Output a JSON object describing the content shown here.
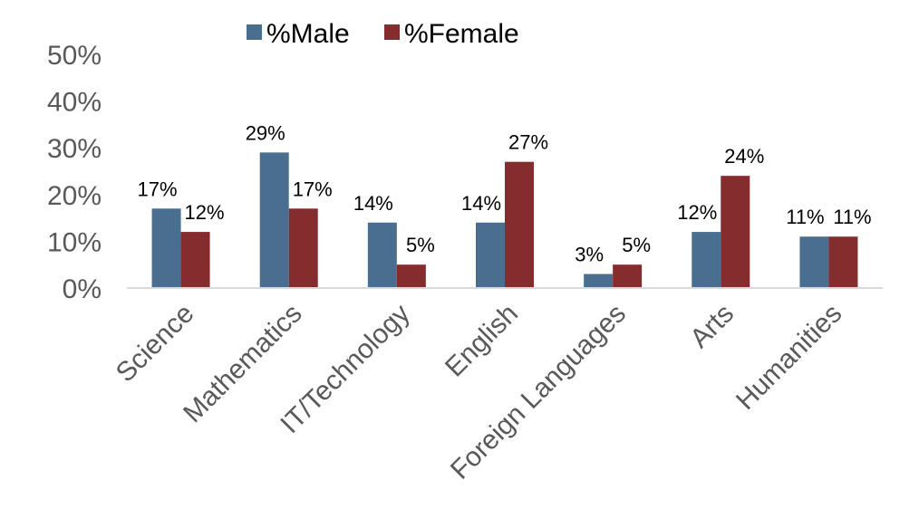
{
  "chart_data": {
    "type": "bar",
    "categories": [
      "Science",
      "Mathematics",
      "IT/Technology",
      "English",
      "Foreign Languages",
      "Arts",
      "Humanities"
    ],
    "series": [
      {
        "name": "%Male",
        "values": [
          17,
          29,
          14,
          14,
          3,
          12,
          11
        ],
        "labels": [
          "17%",
          "29%",
          "14%",
          "14%",
          "3%",
          "12%",
          "11%"
        ],
        "color": "#4A6E8F"
      },
      {
        "name": "%Female",
        "values": [
          12,
          17,
          5,
          27,
          5,
          24,
          11
        ],
        "labels": [
          "12%",
          "17%",
          "5%",
          "27%",
          "5%",
          "24%",
          "11%"
        ],
        "color": "#852C2F"
      }
    ],
    "ylim": [
      0,
      50
    ],
    "yticks": [
      "0%",
      "10%",
      "20%",
      "30%",
      "40%",
      "50%"
    ],
    "ytick_values": [
      0,
      10,
      20,
      30,
      40,
      50
    ],
    "grid": false,
    "legend_position": "top",
    "axis_color": "#D9D9D9",
    "text_color": "#595959"
  }
}
